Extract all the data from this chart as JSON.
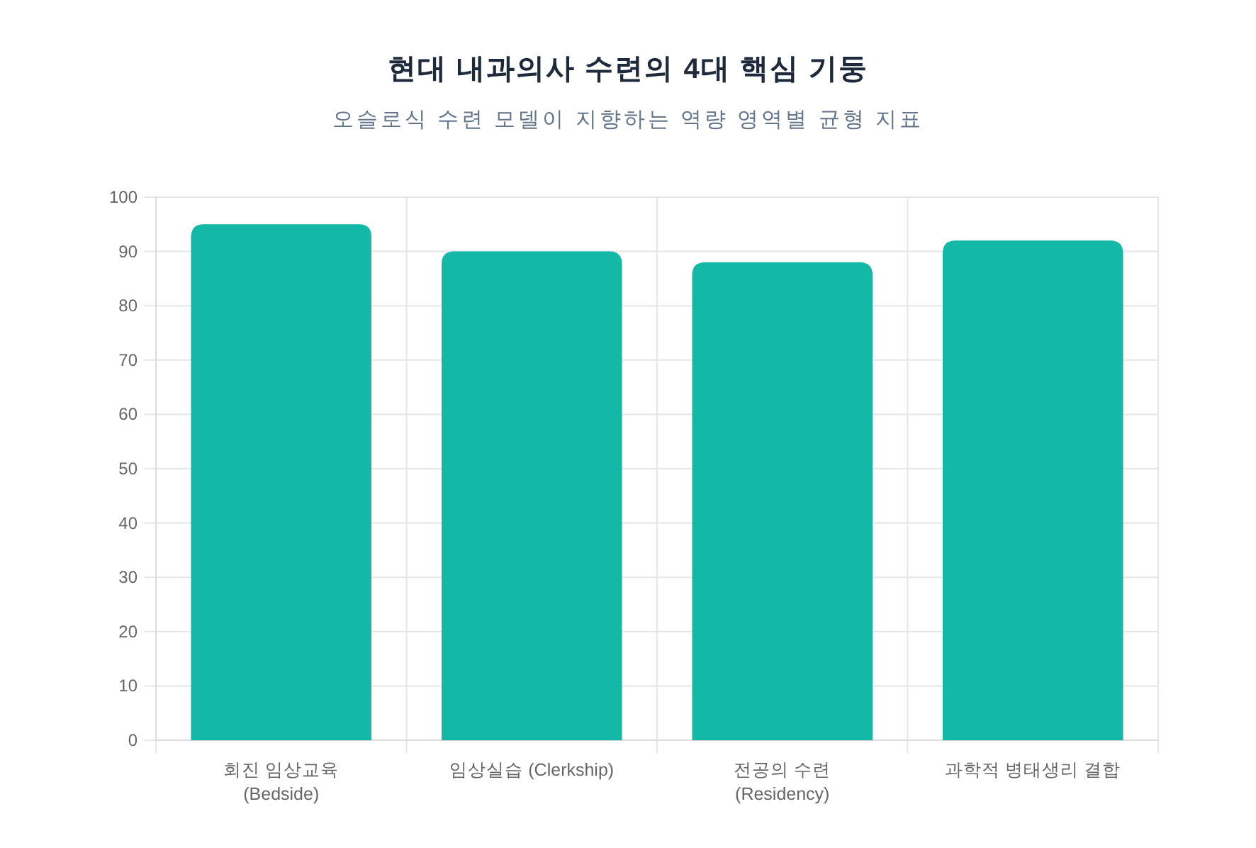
{
  "chart_data": {
    "type": "bar",
    "title": "현대 내과의사 수련의 4대 핵심 기둥",
    "subtitle": "오슬로식 수련 모델이 지향하는 역량 영역별 균형 지표",
    "categories": [
      "회진 임상교육\n(Bedside)",
      "임상실습 (Clerkship)",
      "전공의 수련\n(Residency)",
      "과학적 병태생리 결합"
    ],
    "values": [
      95,
      90,
      88,
      92
    ],
    "color": "#14b8a6",
    "ylim": [
      0,
      100
    ],
    "yticks": [
      0,
      10,
      20,
      30,
      40,
      50,
      60,
      70,
      80,
      90,
      100
    ],
    "grid": true
  }
}
